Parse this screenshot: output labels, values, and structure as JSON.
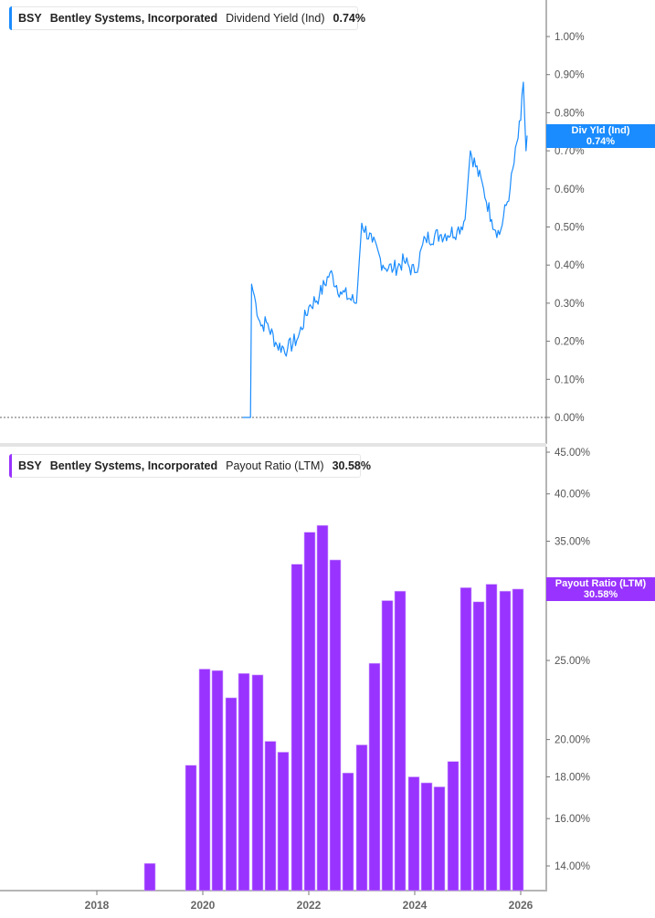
{
  "top_panel": {
    "legend": {
      "ticker": "BSY",
      "company": "Bentley Systems, Incorporated",
      "metric": "Dividend Yield (Ind)",
      "value": "0.74%"
    },
    "tag": {
      "label": "Div Yld (Ind)",
      "value": "0.74%"
    },
    "color": "#1a8cff"
  },
  "bottom_panel": {
    "legend": {
      "ticker": "BSY",
      "company": "Bentley Systems, Incorporated",
      "metric": "Payout Ratio (LTM)",
      "value": "30.58%"
    },
    "tag": {
      "label": "Payout Ratio (LTM)",
      "value": "30.58%"
    },
    "color": "#9933ff"
  },
  "chart_data": [
    {
      "type": "line",
      "title": "BSY Bentley Systems, Incorporated Dividend Yield (Ind) 0.74%",
      "ylabel": "Dividend Yield (Ind)",
      "y_ticks": [
        "1.00%",
        "0.90%",
        "0.80%",
        "0.70%",
        "0.60%",
        "0.50%",
        "0.40%",
        "0.30%",
        "0.20%",
        "0.10%",
        "0.00%"
      ],
      "ylim": [
        0,
        1.0
      ],
      "x": [
        2020.75,
        2020.9,
        2020.92,
        2021.0,
        2021.1,
        2021.2,
        2021.4,
        2021.6,
        2021.8,
        2022.0,
        2022.2,
        2022.4,
        2022.6,
        2022.9,
        2023.0,
        2023.2,
        2023.4,
        2023.6,
        2023.8,
        2024.0,
        2024.2,
        2024.5,
        2024.8,
        2024.95,
        2025.05,
        2025.3,
        2025.45,
        2025.6,
        2025.8,
        2026.0,
        2026.05,
        2026.1,
        2026.12
      ],
      "values": [
        0.0,
        0.0,
        0.35,
        0.3,
        0.24,
        0.25,
        0.19,
        0.18,
        0.21,
        0.29,
        0.32,
        0.38,
        0.33,
        0.3,
        0.51,
        0.46,
        0.4,
        0.39,
        0.41,
        0.38,
        0.47,
        0.48,
        0.49,
        0.52,
        0.7,
        0.6,
        0.52,
        0.48,
        0.6,
        0.78,
        0.88,
        0.7,
        0.74
      ],
      "zero_line": "dotted",
      "last_value": 0.74
    },
    {
      "type": "bar",
      "title": "BSY Bentley Systems, Incorporated Payout Ratio (LTM) 30.58%",
      "ylabel": "Payout Ratio (LTM)",
      "y_scale": "log",
      "y_ticks": [
        "45.00%",
        "40.00%",
        "35.00%",
        "30.00%",
        "25.00%",
        "20.00%",
        "18.00%",
        "16.00%",
        "14.00%"
      ],
      "x_ticks": [
        "2018",
        "2020",
        "2022",
        "2024",
        "2026"
      ],
      "categories": [
        "2019-Q1",
        "2019-Q4",
        "2020-Q1",
        "2020-Q2",
        "2020-Q3",
        "2020-Q4",
        "2021-Q1",
        "2021-Q2",
        "2021-Q3",
        "2021-Q4",
        "2022-Q1",
        "2022-Q2",
        "2022-Q3",
        "2022-Q4",
        "2023-Q1",
        "2023-Q2",
        "2023-Q3",
        "2023-Q4",
        "2024-Q1",
        "2024-Q2",
        "2024-Q3",
        "2024-Q4",
        "2025-Q1",
        "2025-Q2",
        "2025-Q3",
        "2025-Q4",
        "2026-Q1"
      ],
      "values": [
        14.1,
        18.6,
        24.4,
        24.3,
        22.5,
        24.1,
        24.0,
        19.9,
        19.3,
        32.8,
        35.9,
        36.6,
        33.2,
        18.2,
        19.7,
        24.8,
        29.6,
        30.4,
        18.0,
        17.7,
        17.5,
        18.8,
        30.7,
        29.5,
        31.0,
        30.4,
        30.58
      ],
      "last_value": 30.58
    }
  ]
}
